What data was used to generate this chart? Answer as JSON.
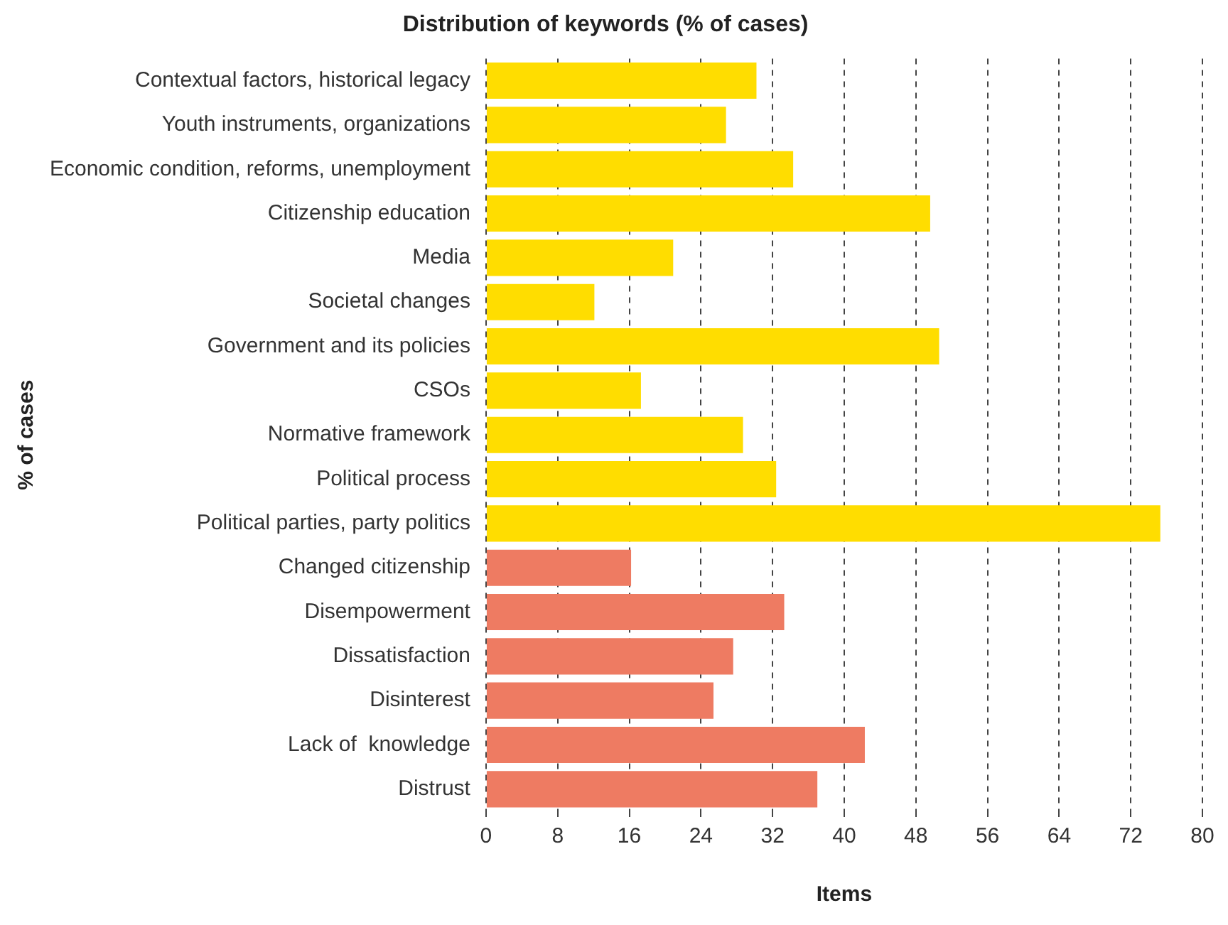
{
  "chart_data": {
    "type": "bar",
    "orientation": "horizontal",
    "title": "Distribution of keywords (% of cases)",
    "xlabel": "Items",
    "ylabel": "% of cases",
    "categories": [
      "Contextual factors, historical legacy",
      "Youth instruments, organizations",
      "Economic condition, reforms, unemployment",
      "Citizenship education",
      "Media",
      "Societal changes",
      "Government and its policies",
      "CSOs",
      "Normative framework",
      "Political process",
      "Political parties, party politics",
      "Changed citizenship",
      "Disempowerment",
      "Dissatisfaction",
      "Disinterest",
      "Lack of  knowledge",
      "Distrust"
    ],
    "values": [
      30.2,
      26.8,
      34.3,
      49.6,
      20.9,
      12.1,
      50.6,
      17.3,
      28.7,
      32.4,
      75.3,
      16.2,
      33.3,
      27.6,
      25.4,
      42.3,
      37.0
    ],
    "colors": [
      "#ffdd00",
      "#ffdd00",
      "#ffdd00",
      "#ffdd00",
      "#ffdd00",
      "#ffdd00",
      "#ffdd00",
      "#ffdd00",
      "#ffdd00",
      "#ffdd00",
      "#ffdd00",
      "#ee7b62",
      "#ee7b62",
      "#ee7b62",
      "#ee7b62",
      "#ee7b62",
      "#ee7b62"
    ],
    "xlim": [
      0,
      80
    ],
    "xticks": [
      0,
      8,
      16,
      24,
      32,
      40,
      48,
      56,
      64,
      72,
      80
    ],
    "grid": "x",
    "legend": false
  }
}
